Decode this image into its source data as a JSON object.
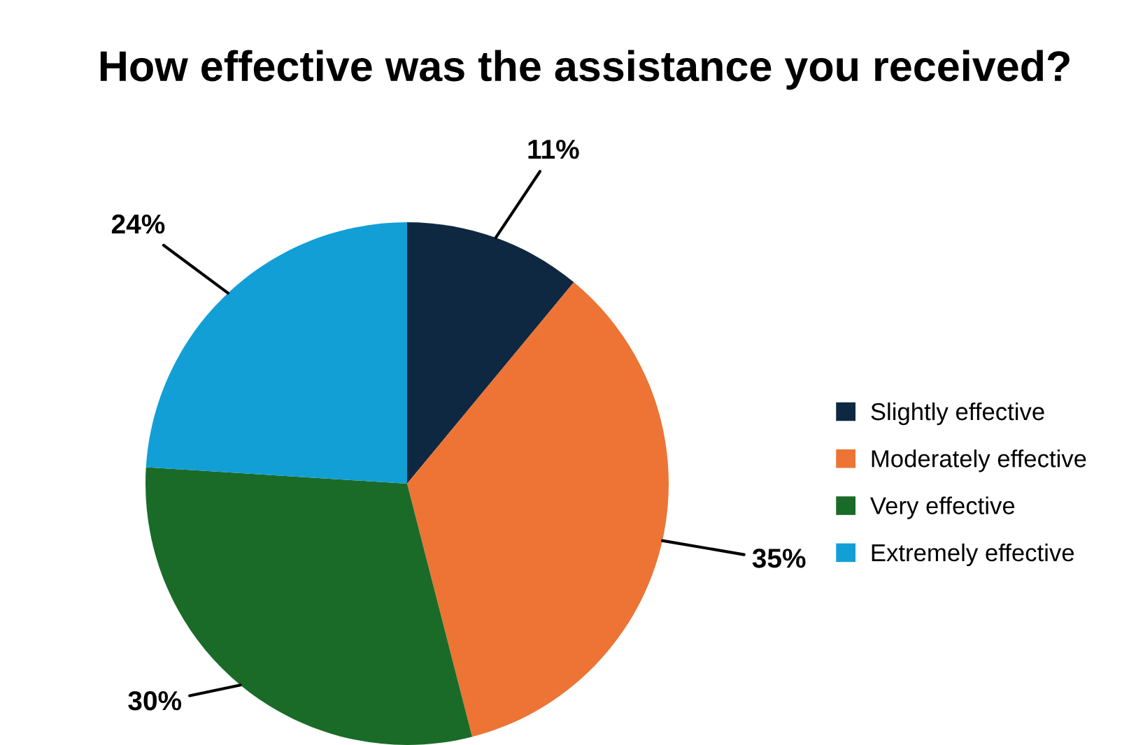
{
  "chart_data": {
    "type": "pie",
    "title": "How effective was the assistance you received?",
    "categories": [
      "Slightly effective",
      "Moderately effective",
      "Very effective",
      "Extremely effective"
    ],
    "values": [
      11,
      35,
      30,
      24
    ],
    "colors": [
      "#0f2841",
      "#ed7434",
      "#1a6b28",
      "#129fd6"
    ],
    "value_labels": [
      "11%",
      "35%",
      "30%",
      "24%"
    ],
    "legend": "right"
  }
}
